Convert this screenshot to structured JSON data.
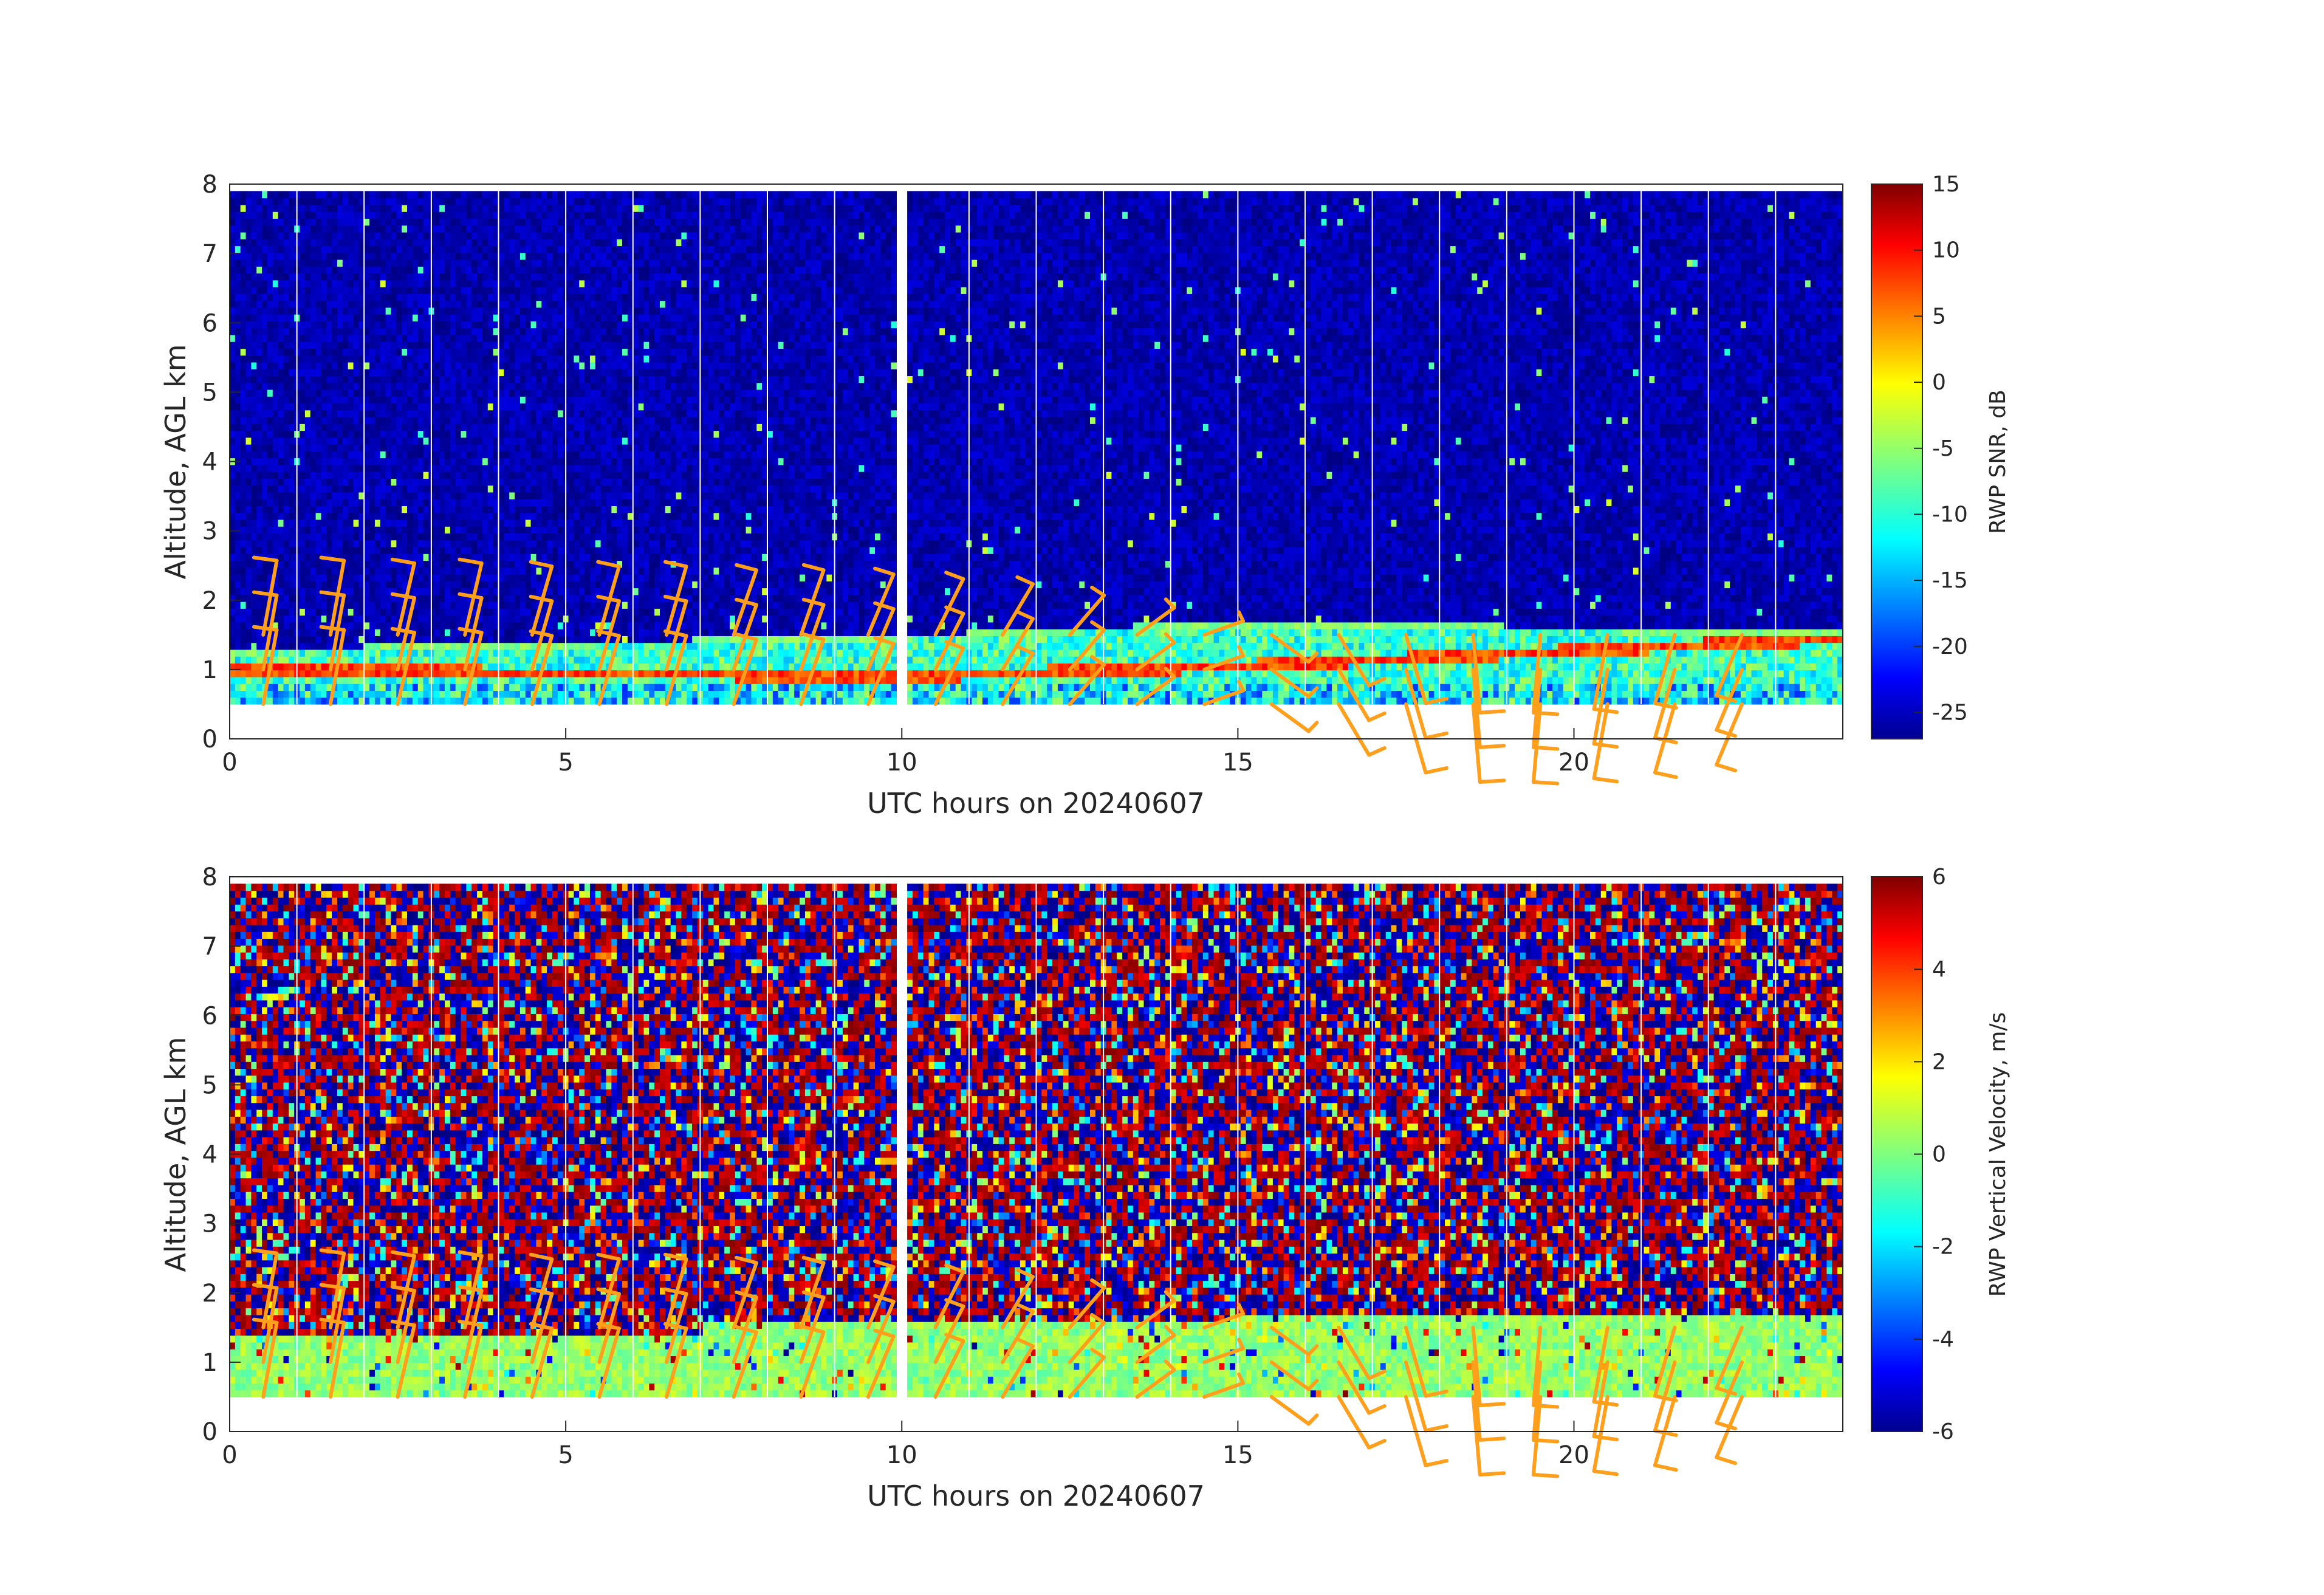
{
  "chart_data": [
    {
      "type": "heatmap",
      "field": "snr",
      "xlabel": "UTC hours on 20240607",
      "ylabel": "Altitude, AGL km",
      "xlim": [
        0,
        24
      ],
      "ylim": [
        0,
        8
      ],
      "xticks": [
        0,
        5,
        10,
        15,
        20
      ],
      "yticks": [
        0,
        1,
        2,
        3,
        4,
        5,
        6,
        7,
        8
      ],
      "colorbar": {
        "label": "RWP SNR, dB",
        "range": [
          -27,
          15
        ],
        "ticks": [
          15,
          10,
          5,
          0,
          -5,
          -10,
          -15,
          -20,
          -25
        ],
        "colormap": "jet"
      },
      "data_altitude_range_km": [
        0.5,
        7.9
      ],
      "gap_hours": [
        10.0
      ],
      "noise_floor_db": -25,
      "layer_features": [
        {
          "name": "low bright layer",
          "altitude_km": [
            [
              0,
              1.0
            ],
            [
              10,
              0.9
            ],
            [
              15,
              1.05
            ],
            [
              24,
              1.45
            ]
          ],
          "snr_db": 10
        },
        {
          "name": "upper layer top",
          "altitude_km": [
            [
              0,
              1.3
            ],
            [
              10,
              1.5
            ],
            [
              15,
              1.7
            ],
            [
              24,
              1.55
            ]
          ],
          "snr_db": -8
        }
      ]
    },
    {
      "type": "heatmap",
      "field": "vertical_velocity",
      "xlabel": "UTC hours on 20240607",
      "ylabel": "Altitude, AGL km",
      "xlim": [
        0,
        24
      ],
      "ylim": [
        0,
        8
      ],
      "xticks": [
        0,
        5,
        10,
        15,
        20
      ],
      "yticks": [
        0,
        1,
        2,
        3,
        4,
        5,
        6,
        7,
        8
      ],
      "colorbar": {
        "label": "RWP Vertical Velocity, m/s",
        "range": [
          -6,
          6
        ],
        "ticks": [
          6,
          4,
          2,
          0,
          -2,
          -4,
          -6
        ],
        "colormap": "jet"
      },
      "data_altitude_range_km": [
        0.5,
        7.9
      ],
      "gap_hours": [
        10.0
      ],
      "valid_layer_velocity_ms": [
        -0.5,
        1.0
      ],
      "noise_velocity_ms": [
        -6,
        6
      ]
    }
  ],
  "wind_barbs": {
    "color": "#ff9f1c",
    "times_hours": [
      0.5,
      1.5,
      2.5,
      3.5,
      4.5,
      5.5,
      6.5,
      7.5,
      8.5,
      9.5,
      10.5,
      11.5,
      12.5,
      13.5,
      14.5,
      15.5,
      16.5,
      17.5,
      18.5,
      19.5,
      20.5,
      21.5,
      22.5
    ],
    "altitudes_km": [
      0.5,
      1.0,
      1.5
    ],
    "direction_deg": [
      200,
      200,
      205,
      205,
      210,
      210,
      210,
      215,
      215,
      220,
      225,
      230,
      240,
      250,
      260,
      290,
      310,
      330,
      350,
      10,
      20,
      30,
      40
    ]
  }
}
